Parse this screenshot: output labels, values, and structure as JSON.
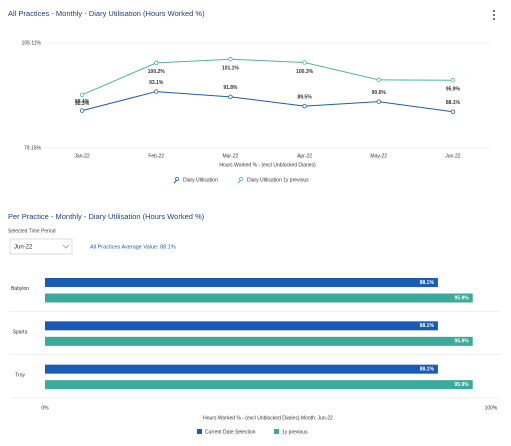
{
  "chart_data": [
    {
      "type": "line",
      "title": "All Practices - Monthly - Diary Utilisation (Hours Worked %)",
      "categories": [
        "Jan-22",
        "Feb-22",
        "Mar-22",
        "Apr-22",
        "May-22",
        "Jun-22"
      ],
      "series": [
        {
          "name": "Diary Utilisation",
          "color": "#1f5fa6",
          "values": [
            88.4,
            93.1,
            91.8,
            89.5,
            90.6,
            88.1
          ],
          "value_labels": [
            "88.4%",
            "93.1%",
            "91.8%",
            "89.5%",
            "90.6%",
            "88.1%"
          ]
        },
        {
          "name": "Diary Utilisation 1y previous",
          "color": "#4fb3a9",
          "values": [
            92.3,
            100.2,
            101.1,
            100.3,
            96.0,
            95.9
          ],
          "value_labels": [
            "92.3%",
            "100.2%",
            "101.1%",
            "100.3%",
            null,
            "95.9%"
          ]
        }
      ],
      "ylim": [
        79.15,
        105.11
      ],
      "yticks": [
        {
          "value": 79.15,
          "label": "79.15%"
        },
        {
          "value": 105.11,
          "label": "105.11%"
        }
      ],
      "xlabel": "Hours Worked % - (excl Unblocked Diaries)",
      "grid": true
    },
    {
      "type": "hbar",
      "title": "Per Practice - Monthly - Diary Utilisation (Hours Worked %)",
      "filter_label": "Selected Time Period",
      "filter_value": "Jun-22",
      "annotation": "All Practices Average Value: 88.1%",
      "categories": [
        "Babylon",
        "Sparta",
        "Troy"
      ],
      "series": [
        {
          "name": "Current Date Selection",
          "color": "#1a5bb5",
          "values": [
            88.1,
            88.1,
            88.1
          ],
          "value_labels": [
            "88.1%",
            "88.1%",
            "88.1%"
          ]
        },
        {
          "name": "1y previous",
          "color": "#3aaa9a",
          "values": [
            95.9,
            95.9,
            95.9
          ],
          "value_labels": [
            "95.9%",
            "95.9%",
            "95.9%"
          ]
        }
      ],
      "xlim": [
        0,
        100
      ],
      "xticks": [
        {
          "value": 0,
          "label": "0%"
        },
        {
          "value": 100,
          "label": "100%"
        }
      ],
      "xlabel": "Hours Worked % - (excl Unblocked Diaries) Month: Jun-22"
    }
  ]
}
